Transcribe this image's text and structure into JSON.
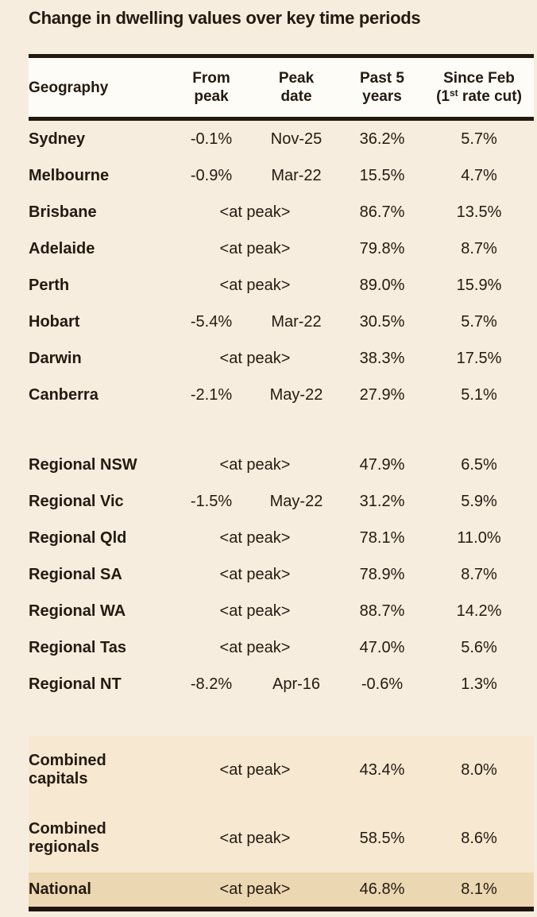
{
  "title": "Change in dwelling values over key time periods",
  "colors": {
    "page_bg": "#f7edde",
    "header_bg": "#fdfcf7",
    "combined_block_bg": "#f6e8d1",
    "national_row_bg": "#ebd7b2",
    "ink": "#231a10"
  },
  "chart_data": {
    "type": "table",
    "title": "Change in dwelling values over key time periods",
    "columns": [
      "Geography",
      "From peak",
      "Peak date",
      "Past 5 years",
      "Since Feb (1st rate cut)"
    ],
    "header": {
      "geography": "Geography",
      "from_peak": [
        "From",
        "peak"
      ],
      "peak_date": [
        "Peak",
        "date"
      ],
      "past_5_years": [
        "Past 5",
        "years"
      ],
      "since_feb_line1": "Since Feb",
      "since_feb_line2_parts": [
        "(1",
        "st",
        " rate cut)"
      ]
    },
    "at_peak_label": "<at peak>",
    "rows": [
      {
        "group": "capitals",
        "geography": "Sydney",
        "at_peak": false,
        "from_peak": "-0.1%",
        "peak_date": "Nov-25",
        "past_5_years": "36.2%",
        "since_feb": "5.7%",
        "highlight": null
      },
      {
        "group": "capitals",
        "geography": "Melbourne",
        "at_peak": false,
        "from_peak": "-0.9%",
        "peak_date": "Mar-22",
        "past_5_years": "15.5%",
        "since_feb": "4.7%",
        "highlight": null
      },
      {
        "group": "capitals",
        "geography": "Brisbane",
        "at_peak": true,
        "past_5_years": "86.7%",
        "since_feb": "13.5%",
        "highlight": null
      },
      {
        "group": "capitals",
        "geography": "Adelaide",
        "at_peak": true,
        "past_5_years": "79.8%",
        "since_feb": "8.7%",
        "highlight": null
      },
      {
        "group": "capitals",
        "geography": "Perth",
        "at_peak": true,
        "past_5_years": "89.0%",
        "since_feb": "15.9%",
        "highlight": null
      },
      {
        "group": "capitals",
        "geography": "Hobart",
        "at_peak": false,
        "from_peak": "-5.4%",
        "peak_date": "Mar-22",
        "past_5_years": "30.5%",
        "since_feb": "5.7%",
        "highlight": null
      },
      {
        "group": "capitals",
        "geography": "Darwin",
        "at_peak": true,
        "past_5_years": "38.3%",
        "since_feb": "17.5%",
        "highlight": null
      },
      {
        "group": "capitals",
        "geography": "Canberra",
        "at_peak": false,
        "from_peak": "-2.1%",
        "peak_date": "May-22",
        "past_5_years": "27.9%",
        "since_feb": "5.1%",
        "highlight": null
      },
      {
        "group": "regionals",
        "geography": "Regional NSW",
        "at_peak": true,
        "past_5_years": "47.9%",
        "since_feb": "6.5%",
        "highlight": null
      },
      {
        "group": "regionals",
        "geography": "Regional Vic",
        "at_peak": false,
        "from_peak": "-1.5%",
        "peak_date": "May-22",
        "past_5_years": "31.2%",
        "since_feb": "5.9%",
        "highlight": null
      },
      {
        "group": "regionals",
        "geography": "Regional Qld",
        "at_peak": true,
        "past_5_years": "78.1%",
        "since_feb": "11.0%",
        "highlight": null
      },
      {
        "group": "regionals",
        "geography": "Regional SA",
        "at_peak": true,
        "past_5_years": "78.9%",
        "since_feb": "8.7%",
        "highlight": null
      },
      {
        "group": "regionals",
        "geography": "Regional WA",
        "at_peak": true,
        "past_5_years": "88.7%",
        "since_feb": "14.2%",
        "highlight": null
      },
      {
        "group": "regionals",
        "geography": "Regional Tas",
        "at_peak": true,
        "past_5_years": "47.0%",
        "since_feb": "5.6%",
        "highlight": null
      },
      {
        "group": "regionals",
        "geography": "Regional NT",
        "at_peak": false,
        "from_peak": "-8.2%",
        "peak_date": "Apr-16",
        "past_5_years": "-0.6%",
        "since_feb": "1.3%",
        "highlight": null
      },
      {
        "group": "combined",
        "geography": "Combined capitals",
        "at_peak": true,
        "past_5_years": "43.4%",
        "since_feb": "8.0%",
        "highlight": "soft"
      },
      {
        "group": "combined",
        "geography": "Combined regionals",
        "at_peak": true,
        "past_5_years": "58.5%",
        "since_feb": "8.6%",
        "highlight": "soft"
      },
      {
        "group": "combined",
        "geography": "National",
        "at_peak": true,
        "past_5_years": "46.8%",
        "since_feb": "8.1%",
        "highlight": "strong"
      }
    ]
  }
}
